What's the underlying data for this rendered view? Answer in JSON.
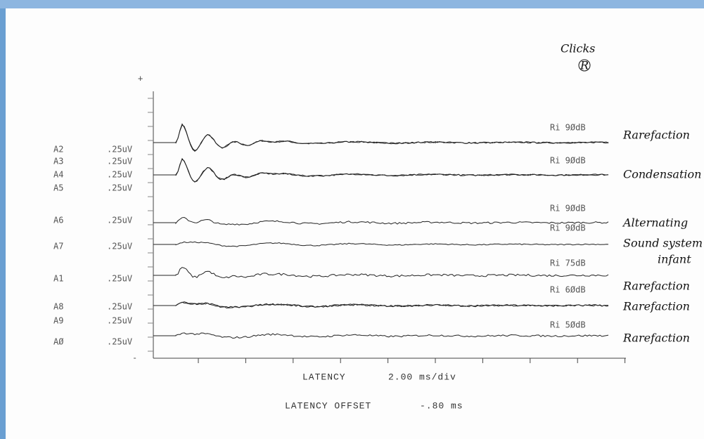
{
  "annotation": {
    "title": "Clicks",
    "ear": "R"
  },
  "scale": {
    "plus": "+",
    "minus": "-"
  },
  "channels": [
    {
      "label": "A2",
      "gain": ".25uV"
    },
    {
      "label": "A3",
      "gain": ".25uV"
    },
    {
      "label": "A4",
      "gain": ".25uV"
    },
    {
      "label": "A5",
      "gain": ".25uV"
    },
    {
      "label": "A6",
      "gain": ".25uV"
    },
    {
      "label": "A7",
      "gain": ".25uV"
    },
    {
      "label": "A1",
      "gain": ".25uV"
    },
    {
      "label": "A8",
      "gain": ".25uV"
    },
    {
      "label": "A9",
      "gain": ".25uV"
    },
    {
      "label": "AØ",
      "gain": ".25uV"
    }
  ],
  "stimuli": [
    "Ri  9ØdB",
    "Ri  9ØdB",
    "Ri  9ØdB",
    "Ri  9ØdB",
    "Ri  75dB",
    "Ri  6ØdB",
    "Ri  5ØdB"
  ],
  "notes": [
    "Rarefaction",
    "Condensation",
    "Alternating",
    "Sound system",
    "infant",
    "Rarefaction",
    "Rarefaction",
    "Rarefaction"
  ],
  "footer": {
    "latency_label": "LATENCY",
    "latency_value": "2.00 ms/div",
    "offset_label": "LATENCY OFFSET",
    "offset_value": "-.80 ms"
  }
}
